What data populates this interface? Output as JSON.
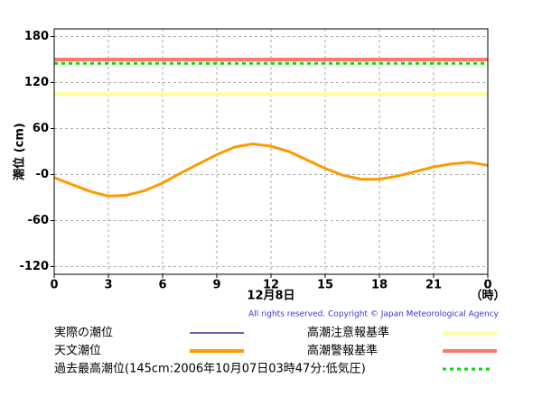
{
  "chart_data": {
    "type": "line",
    "ylabel": "潮位 (cm)",
    "xlabel": "12月8日",
    "xunit": "（時）",
    "copyright": "All rights reserved. Copyright © Japan Meteorological Agency",
    "xlim": [
      0,
      24
    ],
    "xticks": [
      0,
      3,
      6,
      9,
      12,
      15,
      18,
      21,
      {
        "value": 24,
        "label": "0"
      }
    ],
    "ylim": [
      -130,
      190
    ],
    "yticks": [
      180,
      120,
      60,
      {
        "value": 0,
        "label": "-0"
      },
      -60,
      -120
    ],
    "grid": true,
    "x": [
      0,
      1,
      2,
      3,
      4,
      5,
      6,
      7,
      8,
      9,
      10,
      11,
      12,
      13,
      14,
      15,
      16,
      17,
      18,
      19,
      20,
      21,
      22,
      23,
      24
    ],
    "series": [
      {
        "name": "実際の潮位",
        "color": "#333399",
        "values": [
          null,
          null,
          null,
          null,
          null,
          null,
          null,
          null,
          null,
          null,
          null,
          null,
          null,
          null,
          null,
          null,
          null,
          null,
          null,
          null,
          null,
          null,
          null,
          null,
          null
        ]
      },
      {
        "name": "天文潮位",
        "color": "#ff9900",
        "values": [
          -4,
          -13,
          -22,
          -28,
          -27,
          -21,
          -11,
          2,
          14,
          26,
          36,
          40,
          37,
          30,
          19,
          8,
          -1,
          -6,
          -6,
          -2,
          4,
          10,
          14,
          16,
          12
        ]
      }
    ],
    "reference_lines": [
      {
        "name": "高潮注意報基準",
        "value": 105,
        "color": "#ffff99",
        "dashed": false
      },
      {
        "name": "高潮警報基準",
        "value": 150,
        "color": "#ff7766",
        "dashed": false
      },
      {
        "name": "過去最高潮位(145cm:2006年10月07日03時47分:低気圧)",
        "value": 145,
        "color": "#00dd00",
        "dashed": true
      }
    ]
  }
}
